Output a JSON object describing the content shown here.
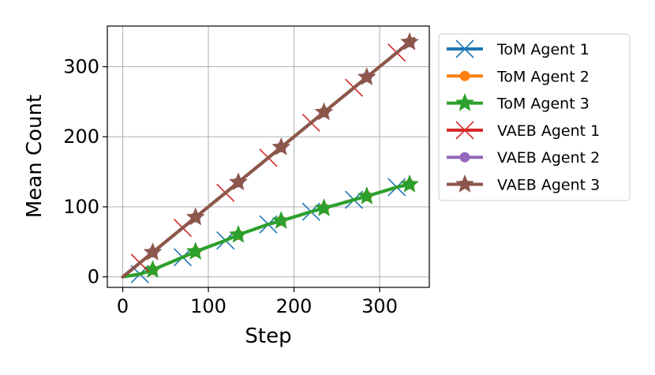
{
  "chart_data": {
    "type": "line",
    "title": "",
    "xlabel": "Step",
    "ylabel": "Mean Count",
    "xlim": [
      -18,
      358
    ],
    "ylim": [
      -15,
      358
    ],
    "xticks": [
      0,
      100,
      200,
      300
    ],
    "yticks": [
      0,
      100,
      200,
      300
    ],
    "grid": true,
    "legend_position": "outside-right",
    "series": [
      {
        "name": "ToM Agent 1",
        "color": "#1f77b4",
        "marker": "x",
        "x": [
          0,
          20,
          35,
          70,
          85,
          120,
          135,
          170,
          185,
          220,
          235,
          270,
          285,
          320,
          335,
          340
        ],
        "y": [
          0,
          4,
          10,
          28,
          36,
          52,
          60,
          75,
          80,
          93,
          98,
          110,
          115,
          128,
          132,
          134
        ]
      },
      {
        "name": "ToM Agent 2",
        "color": "#ff7f0e",
        "marker": "o",
        "x": [
          0,
          20,
          35,
          70,
          85,
          120,
          135,
          170,
          185,
          220,
          235,
          270,
          285,
          320,
          335,
          340
        ],
        "y": [
          0,
          4,
          10,
          28,
          36,
          52,
          60,
          75,
          80,
          93,
          98,
          110,
          115,
          128,
          132,
          134
        ]
      },
      {
        "name": "ToM Agent 3",
        "color": "#2ca02c",
        "marker": "star",
        "x": [
          0,
          20,
          35,
          70,
          85,
          120,
          135,
          170,
          185,
          220,
          235,
          270,
          285,
          320,
          335,
          340
        ],
        "y": [
          0,
          4,
          10,
          28,
          36,
          52,
          60,
          75,
          80,
          93,
          98,
          110,
          115,
          128,
          132,
          134
        ]
      },
      {
        "name": "VAEB Agent 1",
        "color": "#d62728",
        "marker": "x",
        "x": [
          0,
          20,
          35,
          70,
          85,
          120,
          135,
          170,
          185,
          220,
          235,
          270,
          285,
          320,
          335,
          340
        ],
        "y": [
          0,
          20,
          35,
          70,
          85,
          120,
          135,
          170,
          185,
          220,
          235,
          270,
          285,
          320,
          335,
          340
        ]
      },
      {
        "name": "VAEB Agent 2",
        "color": "#9467bd",
        "marker": "o",
        "x": [
          0,
          20,
          35,
          70,
          85,
          120,
          135,
          170,
          185,
          220,
          235,
          270,
          285,
          320,
          335,
          340
        ],
        "y": [
          0,
          20,
          35,
          70,
          85,
          120,
          135,
          170,
          185,
          220,
          235,
          270,
          285,
          320,
          335,
          340
        ]
      },
      {
        "name": "VAEB Agent 3",
        "color": "#8c564b",
        "marker": "star",
        "x": [
          0,
          20,
          35,
          70,
          85,
          120,
          135,
          170,
          185,
          220,
          235,
          270,
          285,
          320,
          335,
          340
        ],
        "y": [
          0,
          20,
          35,
          70,
          85,
          120,
          135,
          170,
          185,
          220,
          235,
          270,
          285,
          320,
          335,
          340
        ]
      }
    ]
  }
}
